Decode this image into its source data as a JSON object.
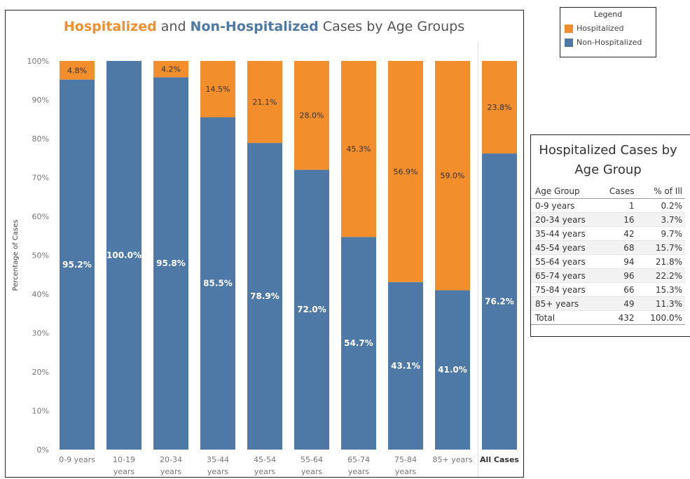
{
  "title": {
    "part1": "Hospitalized",
    "part2": " and ",
    "part3": "Non-Hospitalized",
    "part4": " Cases by Age Groups"
  },
  "colors": {
    "hospitalized": "#F28E2B",
    "non_hospitalized": "#4E79A7"
  },
  "legend": {
    "title": "Legend",
    "items": [
      "Hospitalized",
      "Non-Hospitalized"
    ]
  },
  "chart_data": {
    "type": "bar",
    "stacked": true,
    "categories": [
      [
        "0-9 years"
      ],
      [
        "10-19",
        "years"
      ],
      [
        "20-34",
        "years"
      ],
      [
        "35-44",
        "years"
      ],
      [
        "45-54",
        "years"
      ],
      [
        "55-64",
        "years"
      ],
      [
        "65-74",
        "years"
      ],
      [
        "75-84",
        "years"
      ],
      [
        "85+ years"
      ],
      [
        "All Cases"
      ]
    ],
    "series": [
      {
        "name": "Non-Hospitalized",
        "values": [
          95.2,
          100.0,
          95.8,
          85.5,
          78.9,
          72.0,
          54.7,
          43.1,
          41.0,
          76.2
        ],
        "labels": [
          "95.2%",
          "100.0%",
          "95.8%",
          "85.5%",
          "78.9%",
          "72.0%",
          "54.7%",
          "43.1%",
          "41.0%",
          "76.2%"
        ]
      },
      {
        "name": "Hospitalized",
        "values": [
          4.8,
          0,
          4.2,
          14.5,
          21.1,
          28.0,
          45.3,
          56.9,
          59.0,
          23.8
        ],
        "labels": [
          "4.8%",
          "",
          "4.2%",
          "14.5%",
          "21.1%",
          "28.0%",
          "45.3%",
          "56.9%",
          "59.0%",
          "23.8%"
        ]
      }
    ],
    "ylabel": "Percentage of Cases",
    "ylim": [
      0,
      100
    ],
    "yticks": [
      "0%",
      "10%",
      "20%",
      "30%",
      "40%",
      "50%",
      "60%",
      "70%",
      "80%",
      "90%",
      "100%"
    ],
    "grid": false,
    "legend_position": "top-right"
  },
  "table": {
    "title_line1": "Hospitalized Cases by",
    "title_line2": "Age Group",
    "headers": [
      "Age Group",
      "Cases",
      "% of Ill"
    ],
    "rows": [
      [
        "0-9 years",
        "1",
        "0.2%"
      ],
      [
        "20-34 years",
        "16",
        "3.7%"
      ],
      [
        "35-44 years",
        "42",
        "9.7%"
      ],
      [
        "45-54 years",
        "68",
        "15.7%"
      ],
      [
        "55-64 years",
        "94",
        "21.8%"
      ],
      [
        "65-74 years",
        "96",
        "22.2%"
      ],
      [
        "75-84 years",
        "66",
        "15.3%"
      ],
      [
        "85+ years",
        "49",
        "11.3%"
      ]
    ],
    "total": [
      "Total",
      "432",
      "100.0%"
    ]
  }
}
